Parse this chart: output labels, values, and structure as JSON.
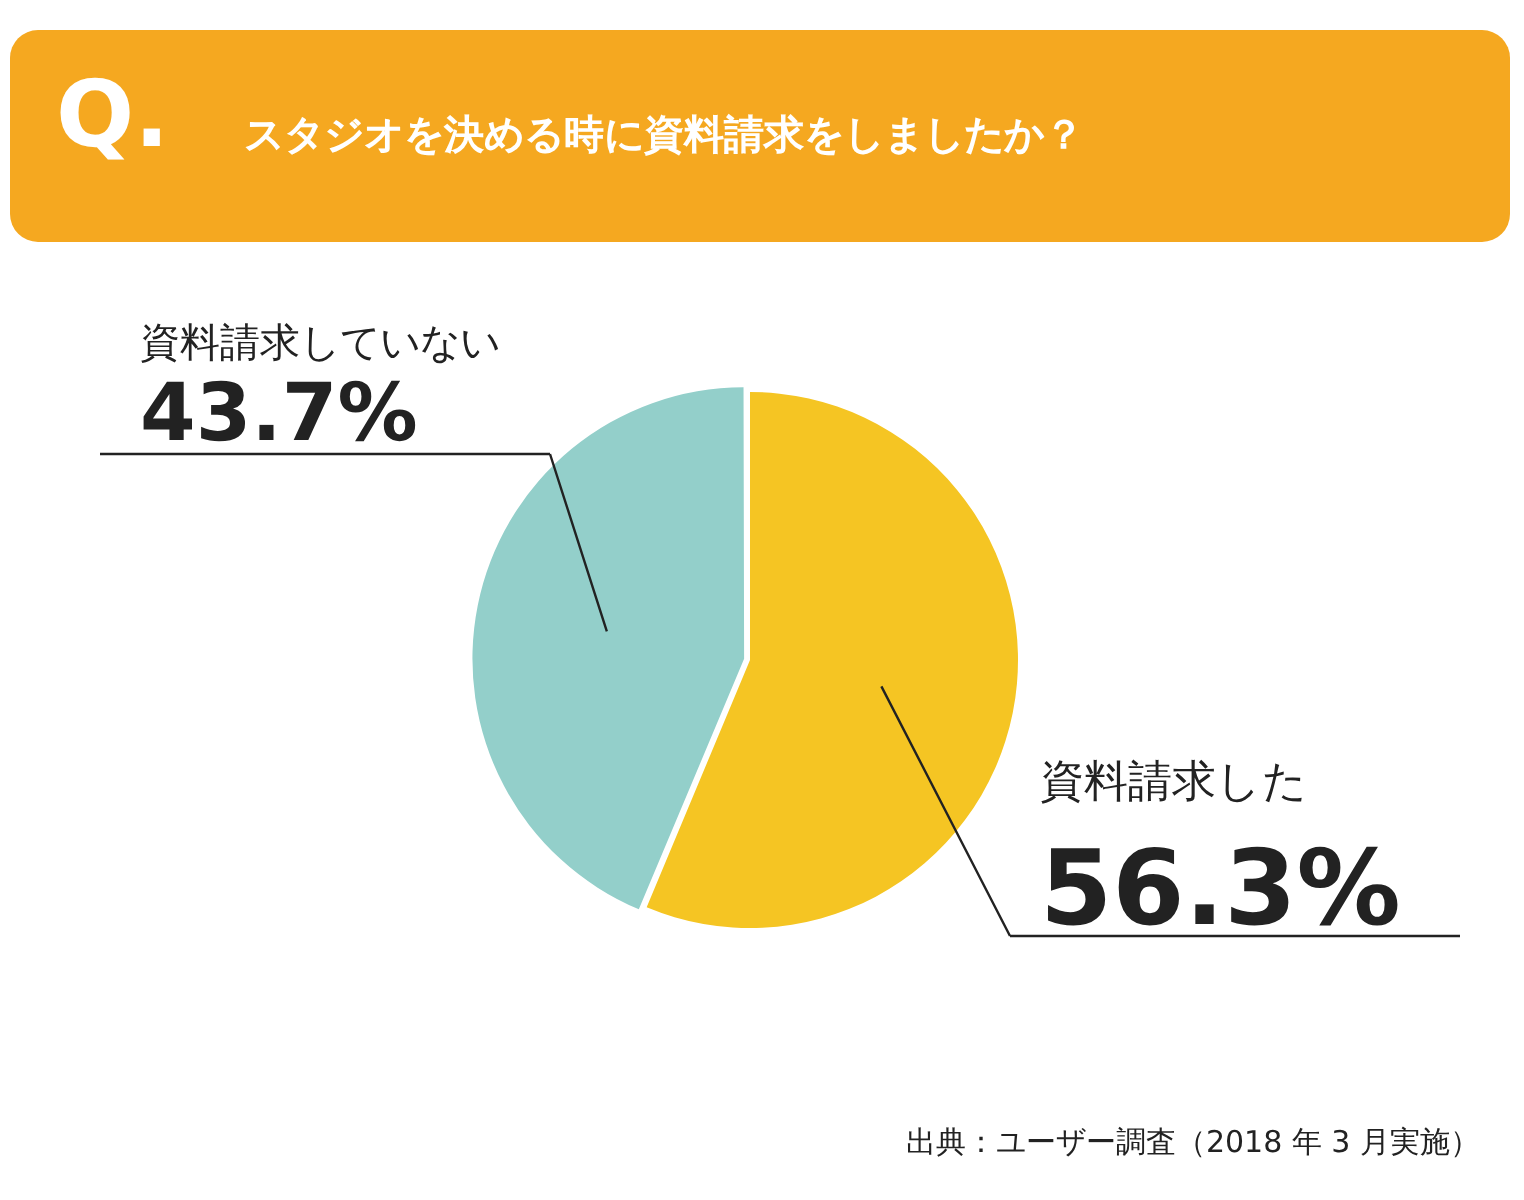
{
  "chart_data": {
    "type": "pie",
    "title": "スタジオを決める時に資料請求をしましたか？",
    "categories": [
      "資料請求した",
      "資料請求していない"
    ],
    "values": [
      56.3,
      43.7
    ],
    "colors": [
      "#f5c523",
      "#93cfca"
    ],
    "value_labels": [
      "56.3%",
      "43.7%"
    ],
    "legend": false,
    "annotations": [
      "Q.",
      "出典：ユーザー調査（2018 年 3 月実施）"
    ]
  }
}
